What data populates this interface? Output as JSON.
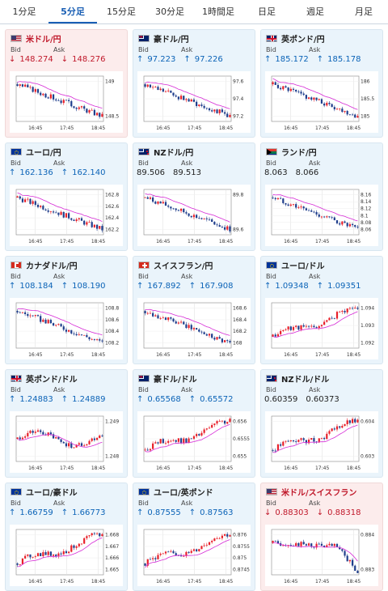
{
  "tabs": [
    {
      "label": "1分足",
      "active": false
    },
    {
      "label": "5分足",
      "active": true
    },
    {
      "label": "15分足",
      "active": false
    },
    {
      "label": "30分足",
      "active": false
    },
    {
      "label": "1時間足",
      "active": false
    },
    {
      "label": "日足",
      "active": false
    },
    {
      "label": "週足",
      "active": false
    },
    {
      "label": "月足",
      "active": false
    }
  ],
  "labels": {
    "bid": "Bid",
    "ask": "Ask"
  },
  "colors": {
    "up": "#0b63b7",
    "down": "#c0182a",
    "candle_up": "#e8202a",
    "candle_down": "#1f3e8c",
    "ma": "#d62ad6"
  },
  "cards": [
    {
      "pair": "米ドル/円",
      "flag": "us-flag-icon",
      "bg": "pink",
      "title_color": "red",
      "dir": "down",
      "bid": "148.274",
      "ask": "148.276",
      "yticks": [
        "149",
        "148.5"
      ],
      "xticks": [
        "16:45",
        "17:45",
        "18:45"
      ],
      "trend": "down"
    },
    {
      "pair": "豪ドル/円",
      "flag": "au-flag-icon",
      "bg": "blue",
      "title_color": "",
      "dir": "up",
      "bid": "97.223",
      "ask": "97.226",
      "yticks": [
        "97.6",
        "97.4",
        "97.2"
      ],
      "xticks": [
        "16:45",
        "17:45",
        "18:45"
      ],
      "trend": "down"
    },
    {
      "pair": "英ポンド/円",
      "flag": "gb-flag-icon",
      "bg": "blue",
      "title_color": "",
      "dir": "up",
      "bid": "185.172",
      "ask": "185.178",
      "yticks": [
        "186",
        "185.5",
        "185"
      ],
      "xticks": [
        "16:45",
        "17:45",
        "18:45"
      ],
      "trend": "down"
    },
    {
      "pair": "ユーロ/円",
      "flag": "eu-flag-icon",
      "bg": "blue",
      "title_color": "",
      "dir": "up",
      "bid": "162.136",
      "ask": "162.140",
      "yticks": [
        "162.8",
        "162.6",
        "162.4",
        "162.2"
      ],
      "xticks": [
        "16:45",
        "17:45",
        "18:45"
      ],
      "trend": "down"
    },
    {
      "pair": "NZドル/円",
      "flag": "nz-flag-icon",
      "bg": "blue",
      "title_color": "",
      "dir": "none",
      "bid": "89.506",
      "ask": "89.513",
      "yticks": [
        "89.8",
        "89.6"
      ],
      "xticks": [
        "16:45",
        "17:45",
        "18:45"
      ],
      "trend": "down"
    },
    {
      "pair": "ランド/円",
      "flag": "za-flag-icon",
      "bg": "blue",
      "title_color": "",
      "dir": "none",
      "bid": "8.063",
      "ask": "8.066",
      "yticks": [
        "8.16",
        "8.14",
        "8.12",
        "8.1",
        "8.08",
        "8.06"
      ],
      "xticks": [
        "16:45",
        "17:45",
        "18:45"
      ],
      "trend": "down"
    },
    {
      "pair": "カナダドル/円",
      "flag": "ca-flag-icon",
      "bg": "blue",
      "title_color": "",
      "dir": "up",
      "bid": "108.184",
      "ask": "108.190",
      "yticks": [
        "108.8",
        "108.6",
        "108.4",
        "108.2"
      ],
      "xticks": [
        "16:45",
        "17:45",
        "18:45"
      ],
      "trend": "down"
    },
    {
      "pair": "スイスフラン/円",
      "flag": "ch-flag-icon",
      "bg": "blue",
      "title_color": "",
      "dir": "up",
      "bid": "167.892",
      "ask": "167.908",
      "yticks": [
        "168.6",
        "168.4",
        "168.2",
        "168"
      ],
      "xticks": [
        "16:45",
        "17:45",
        "18:45"
      ],
      "trend": "down"
    },
    {
      "pair": "ユーロ/ドル",
      "flag": "eu-flag-icon",
      "bg": "blue",
      "title_color": "",
      "dir": "up",
      "bid": "1.09348",
      "ask": "1.09351",
      "yticks": [
        "1.094",
        "1.093",
        "1.092"
      ],
      "xticks": [
        "16:45",
        "17:45",
        "18:45"
      ],
      "trend": "up"
    },
    {
      "pair": "英ポンド/ドル",
      "flag": "gb-flag-icon",
      "bg": "blue",
      "title_color": "",
      "dir": "up",
      "bid": "1.24883",
      "ask": "1.24889",
      "yticks": [
        "1.249",
        "1.248"
      ],
      "xticks": [
        "16:45",
        "17:45",
        "18:45"
      ],
      "trend": "flat"
    },
    {
      "pair": "豪ドル/ドル",
      "flag": "au-flag-icon",
      "bg": "blue",
      "title_color": "",
      "dir": "up",
      "bid": "0.65568",
      "ask": "0.65572",
      "yticks": [
        "0.656",
        "0.6555",
        "0.655"
      ],
      "xticks": [
        "16:45",
        "17:45",
        "18:45"
      ],
      "trend": "up"
    },
    {
      "pair": "NZドル/ドル",
      "flag": "nz-flag-icon",
      "bg": "blue",
      "title_color": "",
      "dir": "none",
      "bid": "0.60359",
      "ask": "0.60373",
      "yticks": [
        "0.604",
        "0.603"
      ],
      "xticks": [
        "16:45",
        "17:45",
        "18:45"
      ],
      "trend": "up"
    },
    {
      "pair": "ユーロ/豪ドル",
      "flag": "eu-flag-icon",
      "bg": "blue",
      "title_color": "",
      "dir": "up",
      "bid": "1.66759",
      "ask": "1.66773",
      "yticks": [
        "1.668",
        "1.667",
        "1.666",
        "1.665"
      ],
      "xticks": [
        "16:45",
        "17:45",
        "18:45"
      ],
      "trend": "up"
    },
    {
      "pair": "ユーロ/英ポンド",
      "flag": "eu-flag-icon",
      "bg": "blue",
      "title_color": "",
      "dir": "up",
      "bid": "0.87555",
      "ask": "0.87563",
      "yticks": [
        "0.876",
        "0.8755",
        "0.875",
        "0.8745"
      ],
      "xticks": [
        "16:45",
        "17:45",
        "18:45"
      ],
      "trend": "up"
    },
    {
      "pair": "米ドル/スイスフラン",
      "flag": "us-flag-icon",
      "bg": "pink",
      "title_color": "red",
      "dir": "down",
      "bid": "0.88303",
      "ask": "0.88318",
      "yticks": [
        "0.884",
        "0.883"
      ],
      "xticks": [
        "16:45",
        "17:45",
        "18:45"
      ],
      "trend": "downend"
    }
  ]
}
